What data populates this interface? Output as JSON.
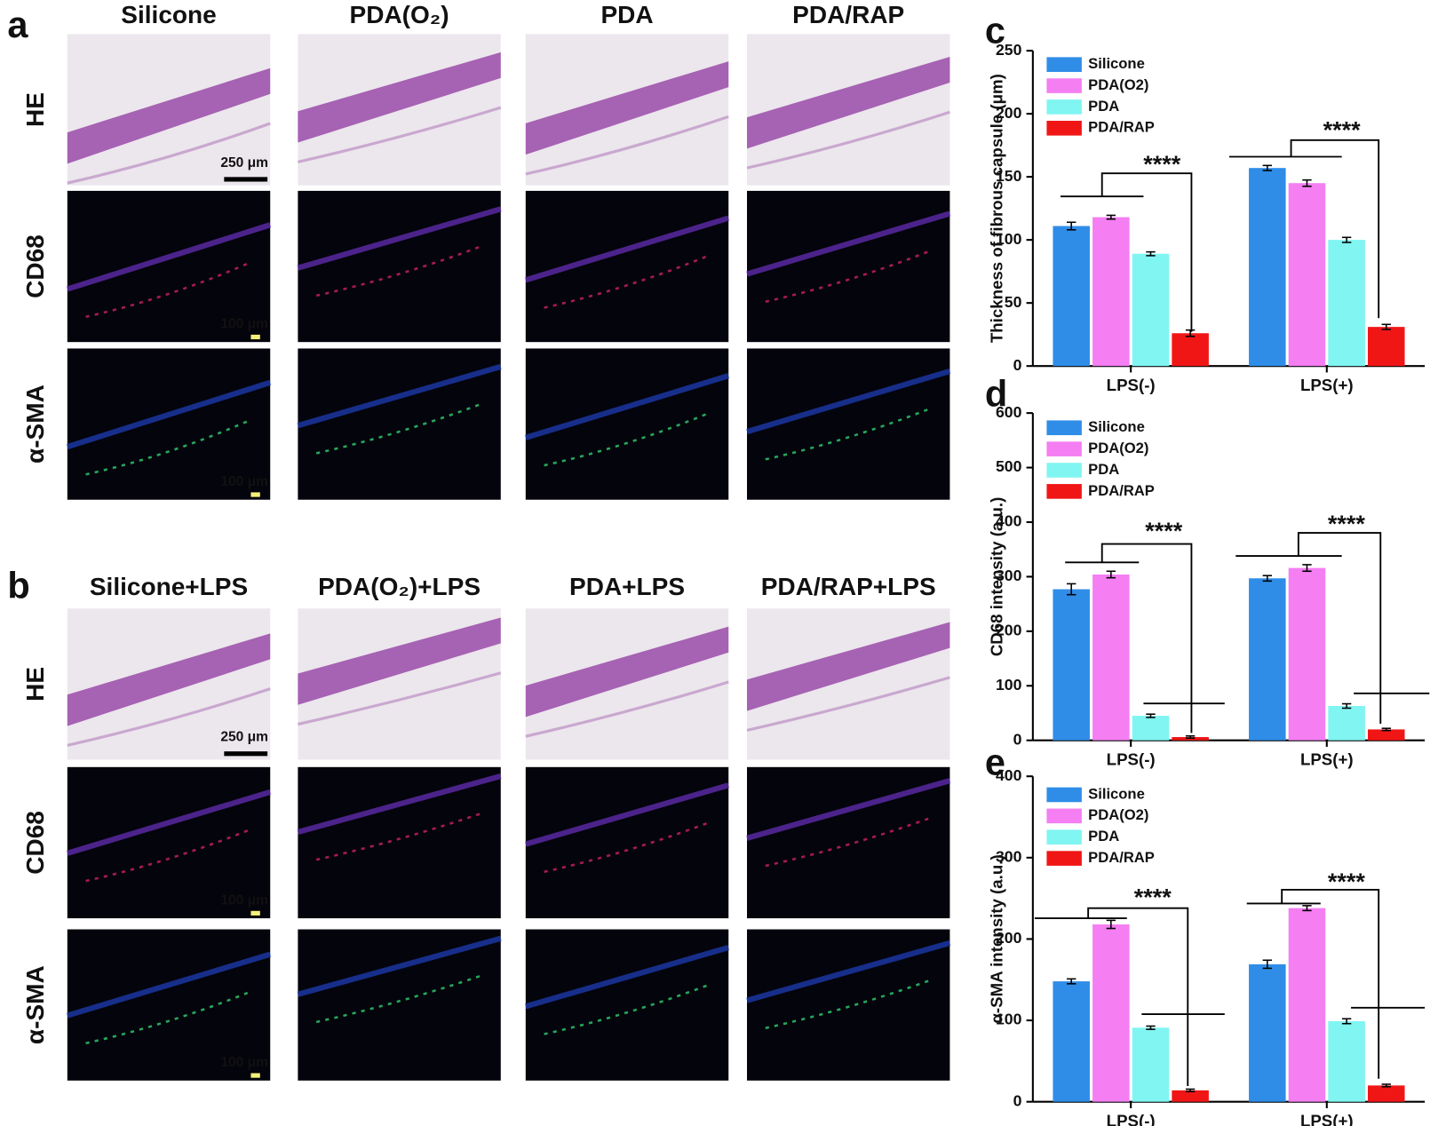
{
  "panel_labels": [
    "a",
    "b",
    "c",
    "d",
    "e"
  ],
  "panel_a": {
    "columns": [
      "Silicone",
      "PDA(O₂)",
      "PDA",
      "PDA/RAP"
    ],
    "rows": [
      "HE",
      "CD68",
      "α-SMA"
    ],
    "scale_bars": [
      "250 μm",
      "100 μm",
      "100 μm"
    ]
  },
  "panel_b": {
    "columns": [
      "Silicone+LPS",
      "PDA(O₂)+LPS",
      "PDA+LPS",
      "PDA/RAP+LPS"
    ],
    "rows": [
      "HE",
      "CD68",
      "α-SMA"
    ],
    "scale_bars": [
      "250 μm",
      "100 μm",
      "100 μm"
    ]
  },
  "chart_data": [
    {
      "type": "bar",
      "ylabel": "Thickness of fibrous capsule (μm)",
      "categories": [
        "LPS(-)",
        "LPS(+)"
      ],
      "series": [
        {
          "name": "Silicone",
          "color": "#2f8de8",
          "values": [
            111,
            157
          ],
          "errors": [
            3,
            2
          ]
        },
        {
          "name": "PDA(O2)",
          "color": "#f47ef2",
          "values": [
            118,
            145
          ],
          "errors": [
            1.5,
            2.5
          ]
        },
        {
          "name": "PDA",
          "color": "#80f5f2",
          "values": [
            89,
            100
          ],
          "errors": [
            1.5,
            2
          ]
        },
        {
          "name": "PDA/RAP",
          "color": "#f01616",
          "values": [
            26,
            31
          ],
          "errors": [
            2.5,
            2
          ]
        }
      ],
      "ylim": [
        0,
        250
      ],
      "yticks": [
        0,
        50,
        100,
        150,
        200,
        250
      ],
      "annotations": [
        "****",
        "****"
      ],
      "legend": "upper left"
    },
    {
      "type": "bar",
      "ylabel": "CD68 intensity (a.u.)",
      "categories": [
        "LPS(-)",
        "LPS(+)"
      ],
      "series": [
        {
          "name": "Silicone",
          "color": "#2f8de8",
          "values": [
            277,
            297
          ],
          "errors": [
            10,
            5
          ]
        },
        {
          "name": "PDA(O2)",
          "color": "#f47ef2",
          "values": [
            304,
            316
          ],
          "errors": [
            6,
            6
          ]
        },
        {
          "name": "PDA",
          "color": "#80f5f2",
          "values": [
            45,
            63
          ],
          "errors": [
            3,
            4
          ]
        },
        {
          "name": "PDA/RAP",
          "color": "#f01616",
          "values": [
            6,
            20
          ],
          "errors": [
            2,
            2
          ]
        }
      ],
      "ylim": [
        0,
        600
      ],
      "yticks": [
        0,
        100,
        200,
        300,
        400,
        500,
        600
      ],
      "annotations": [
        "****",
        "****"
      ],
      "legend": "upper left"
    },
    {
      "type": "bar",
      "ylabel": "α-SMA intensity (a.u.)",
      "categories": [
        "LPS(-)",
        "LPS(+)"
      ],
      "series": [
        {
          "name": "Silicone",
          "color": "#2f8de8",
          "values": [
            148,
            169
          ],
          "errors": [
            3,
            5
          ]
        },
        {
          "name": "PDA(O2)",
          "color": "#f47ef2",
          "values": [
            218,
            238
          ],
          "errors": [
            5,
            3
          ]
        },
        {
          "name": "PDA",
          "color": "#80f5f2",
          "values": [
            91,
            99
          ],
          "errors": [
            2,
            3
          ]
        },
        {
          "name": "PDA/RAP",
          "color": "#f01616",
          "values": [
            14,
            20
          ],
          "errors": [
            1.5,
            1.5
          ]
        }
      ],
      "ylim": [
        0,
        400
      ],
      "yticks": [
        0,
        100,
        200,
        300,
        400
      ],
      "annotations": [
        "****",
        "****"
      ],
      "legend": "upper left"
    }
  ]
}
